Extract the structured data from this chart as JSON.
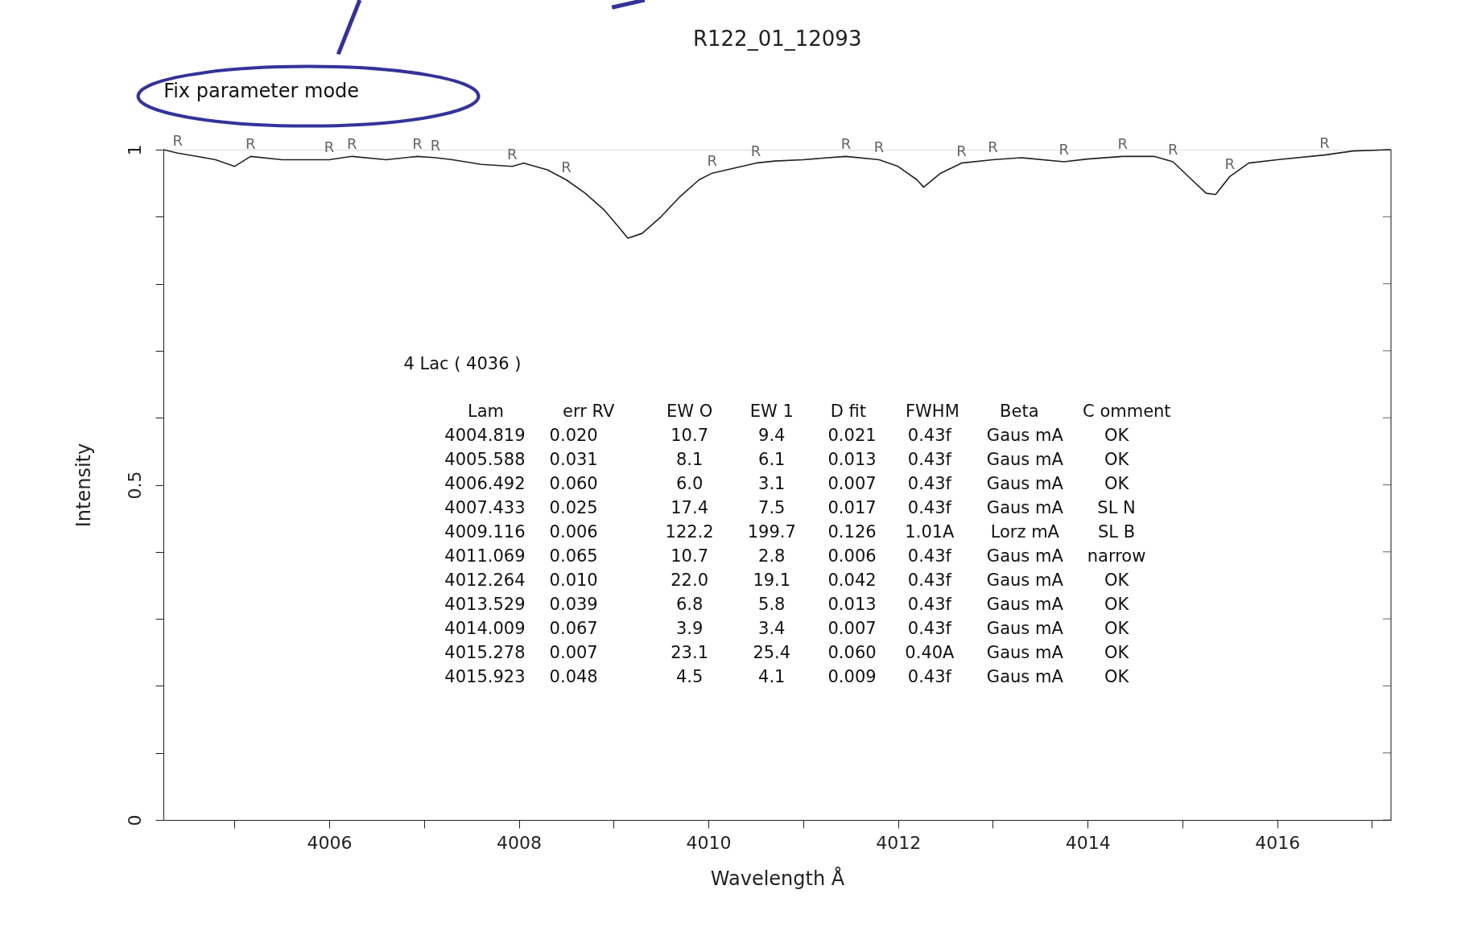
{
  "chart_data": {
    "type": "line",
    "title": "R122_01_12093",
    "xlabel": "Wavelength  Å",
    "ylabel": "Intensity",
    "xlim": [
      4004.25,
      4017.2
    ],
    "ylim": [
      0,
      1
    ],
    "xticks": [
      {
        "value": 4005,
        "label": null
      },
      4006,
      {
        "value": 4007,
        "label": null
      },
      4008,
      {
        "value": 4009,
        "label": null
      },
      4010,
      {
        "value": 4011,
        "label": null
      },
      4012,
      {
        "value": 4013,
        "label": null
      },
      4014,
      {
        "value": 4015,
        "label": null
      },
      4016,
      {
        "value": 4017,
        "label": null
      }
    ],
    "yticks": [
      0,
      {
        "value": 0.1,
        "label": null
      },
      {
        "value": 0.2,
        "label": null
      },
      {
        "value": 0.3,
        "label": null
      },
      {
        "value": 0.4,
        "label": null
      },
      0.5,
      {
        "value": 0.6,
        "label": null
      },
      {
        "value": 0.7,
        "label": null
      },
      {
        "value": 0.8,
        "label": null
      },
      {
        "value": 0.9,
        "label": null
      },
      1
    ],
    "grid": false,
    "marker": "none",
    "line_style": "solid",
    "series": [
      {
        "color": "#222222",
        "x": [
          4004.25,
          4004.4,
          4004.6,
          4004.8,
          4005.0,
          4005.17,
          4005.5,
          4005.8,
          4006.0,
          4006.24,
          4006.6,
          4006.93,
          4007.12,
          4007.3,
          4007.6,
          4007.93,
          4008.05,
          4008.3,
          4008.5,
          4008.7,
          4008.9,
          4009.05,
          4009.15,
          4009.3,
          4009.5,
          4009.7,
          4009.9,
          4010.04,
          4010.5,
          4010.7,
          4011.0,
          4011.45,
          4011.8,
          4012.0,
          4012.2,
          4012.27,
          4012.45,
          4012.67,
          4013.0,
          4013.3,
          4013.75,
          4014.0,
          4014.37,
          4014.7,
          4014.9,
          4015.1,
          4015.25,
          4015.35,
          4015.5,
          4015.7,
          4016.0,
          4016.5,
          4016.8,
          4017.2
        ],
        "values": [
          1.0,
          0.995,
          0.99,
          0.985,
          0.975,
          0.99,
          0.985,
          0.985,
          0.985,
          0.99,
          0.985,
          0.99,
          0.988,
          0.985,
          0.978,
          0.975,
          0.98,
          0.97,
          0.955,
          0.935,
          0.91,
          0.885,
          0.868,
          0.875,
          0.9,
          0.93,
          0.955,
          0.965,
          0.98,
          0.983,
          0.985,
          0.99,
          0.985,
          0.975,
          0.955,
          0.944,
          0.965,
          0.98,
          0.985,
          0.988,
          0.982,
          0.986,
          0.99,
          0.99,
          0.982,
          0.955,
          0.935,
          0.933,
          0.96,
          0.98,
          0.985,
          0.992,
          0.998,
          1.0
        ]
      }
    ],
    "annotations": [
      "Fix parameter mode",
      "4 Lac ( 4036 )",
      "Lam",
      "err  RV",
      "EW O",
      "EW 1",
      "D fit",
      "FWHM",
      "Beta",
      "C omment",
      "4004.819",
      "0.020",
      "10.7",
      "9.4",
      "0.021",
      "0.43f",
      "Gaus mA",
      "OK",
      "4005.588",
      "0.031",
      "8.1",
      "6.1",
      "0.013",
      "0.43f",
      "Gaus mA",
      "OK",
      "4006.492",
      "0.060",
      "6.0",
      "3.1",
      "0.007",
      "0.43f",
      "Gaus mA",
      "OK",
      "4007.433",
      "0.025",
      "17.4",
      "7.5",
      "0.017",
      "0.43f",
      "Gaus mA",
      "SL N",
      "4009.116",
      "0.006",
      "122.2",
      "199.7",
      "0.126",
      "1.01A",
      "Lorz mA",
      "SL B",
      "4011.069",
      "0.065",
      "10.7",
      "2.8",
      "0.006",
      "0.43f",
      "Gaus mA",
      "narrow",
      "4012.264",
      "0.010",
      "22.0",
      "19.1",
      "0.042",
      "0.43f",
      "Gaus mA",
      "OK",
      "4013.529",
      "0.039",
      "6.8",
      "5.8",
      "0.013",
      "0.43f",
      "Gaus mA",
      "OK",
      "4014.009",
      "0.067",
      "3.9",
      "3.4",
      "0.007",
      "0.43f",
      "Gaus mA",
      "OK",
      "4015.278",
      "0.007",
      "23.1",
      "25.4",
      "0.060",
      "0.40A",
      "Gaus mA",
      "OK",
      "4015.923",
      "0.048",
      "4.5",
      "4.1",
      "0.009",
      "0.43f",
      "Gaus mA",
      "OK",
      {
        "text": "R",
        "x": 4004.4,
        "y": 0.995
      },
      {
        "text": "R",
        "x": 4005.17,
        "y": 0.99
      },
      {
        "text": "R",
        "x": 4006.0,
        "y": 0.985
      },
      {
        "text": "R",
        "x": 4006.24,
        "y": 0.99
      },
      {
        "text": "R",
        "x": 4006.93,
        "y": 0.99
      },
      {
        "text": "R",
        "x": 4007.12,
        "y": 0.988
      },
      {
        "text": "R",
        "x": 4007.93,
        "y": 0.975
      },
      {
        "text": "R",
        "x": 4008.5,
        "y": 0.955
      },
      {
        "text": "R",
        "x": 4010.04,
        "y": 0.965
      },
      {
        "text": "R",
        "x": 4010.5,
        "y": 0.98
      },
      {
        "text": "R",
        "x": 4011.45,
        "y": 0.99
      },
      {
        "text": "R",
        "x": 4011.8,
        "y": 0.985
      },
      {
        "text": "R",
        "x": 4012.67,
        "y": 0.98
      },
      {
        "text": "R",
        "x": 4013.0,
        "y": 0.985
      },
      {
        "text": "R",
        "x": 4013.75,
        "y": 0.982
      },
      {
        "text": "R",
        "x": 4014.37,
        "y": 0.99
      },
      {
        "text": "R",
        "x": 4014.9,
        "y": 0.982
      },
      {
        "text": "R",
        "x": 4015.5,
        "y": 0.96
      },
      {
        "text": "R",
        "x": 4016.5,
        "y": 0.992
      }
    ]
  }
}
